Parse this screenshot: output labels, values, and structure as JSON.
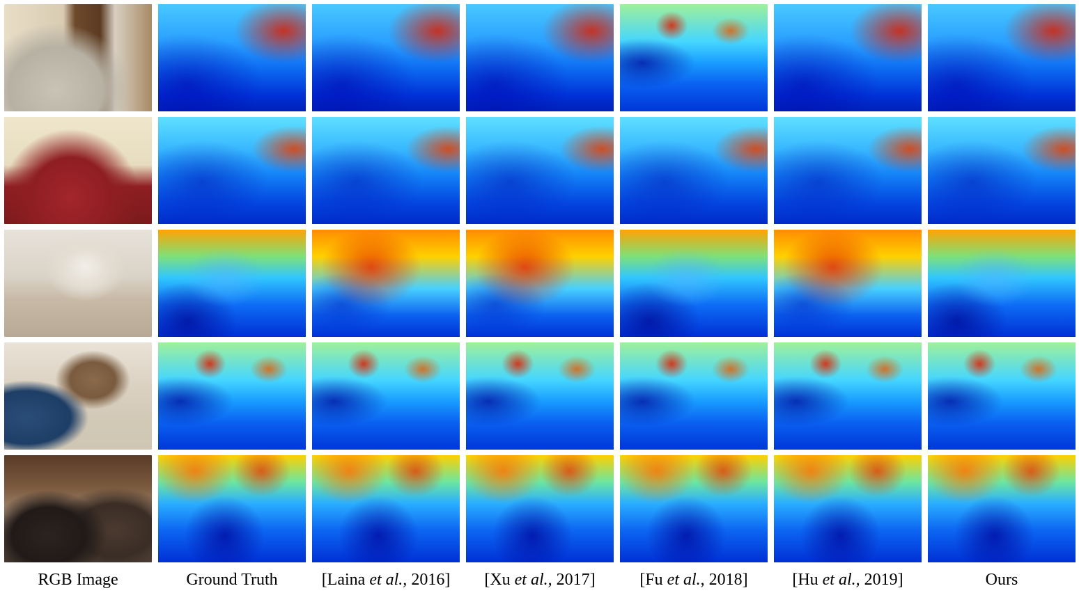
{
  "columns": [
    {
      "label": "RGB Image"
    },
    {
      "label": "Ground Truth"
    },
    {
      "label_prefix": "[Laina ",
      "label_em": "et al.,",
      "label_suffix": " 2016]"
    },
    {
      "label_prefix": "[Xu ",
      "label_em": "et al.,",
      "label_suffix": " 2017]"
    },
    {
      "label_prefix": "[Fu ",
      "label_em": "et al.",
      "label_suffix": ", 2018]"
    },
    {
      "label_prefix": "[Hu ",
      "label_em": "et al.,",
      "label_suffix": " 2019]"
    },
    {
      "label": "Ours"
    }
  ],
  "rows": 5,
  "colors": {
    "caption_text": "#000000",
    "background": "#ffffff"
  }
}
